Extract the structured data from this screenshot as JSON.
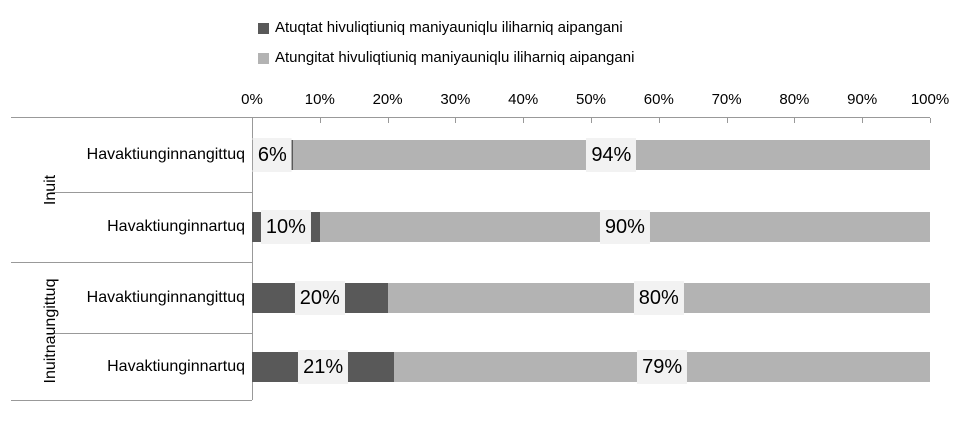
{
  "colors": {
    "series_dark": "#595959",
    "series_light": "#b3b3b3",
    "data_label_bg": "#f2f2f2",
    "axis_line": "#999999",
    "text": "#000000"
  },
  "legend": {
    "position": "top",
    "items": [
      {
        "label": "Atuqtat hivuliqtiuniq maniyauniqlu iliharniq aipangani",
        "color": "#595959"
      },
      {
        "label": "Atungitat hivuliqtiuniq maniyauniqlu iliharniq aipangani",
        "color": "#b3b3b3"
      }
    ]
  },
  "chart_data": {
    "type": "bar",
    "orientation": "horizontal",
    "stacked": true,
    "title": "",
    "grid": false,
    "legend_position": "top",
    "x_axis": {
      "position": "top",
      "min": 0,
      "max": 100,
      "tick_step": 10,
      "tick_labels": [
        "0%",
        "10%",
        "20%",
        "30%",
        "40%",
        "50%",
        "60%",
        "70%",
        "80%",
        "90%",
        "100%"
      ]
    },
    "groups": [
      "Inuit",
      "Inuitnaungittuq"
    ],
    "categories": [
      {
        "group": "Inuit",
        "label": "Havaktiunginnangittuq"
      },
      {
        "group": "Inuit",
        "label": "Havaktiunginnartuq"
      },
      {
        "group": "Inuitnaungittuq",
        "label": "Havaktiunginnangittuq"
      },
      {
        "group": "Inuitnaungittuq",
        "label": "Havaktiunginnartuq"
      }
    ],
    "series": [
      {
        "name": "Atuqtat hivuliqtiuniq maniyauniqlu iliharniq aipangani",
        "color": "#595959",
        "values": [
          6,
          10,
          20,
          21
        ],
        "data_labels": [
          "6%",
          "10%",
          "20%",
          "21%"
        ]
      },
      {
        "name": "Atungitat hivuliqtiuniq maniyauniqlu iliharniq aipangani",
        "color": "#b3b3b3",
        "values": [
          94,
          90,
          80,
          79
        ],
        "data_labels": [
          "94%",
          "90%",
          "80%",
          "79%"
        ]
      }
    ]
  }
}
